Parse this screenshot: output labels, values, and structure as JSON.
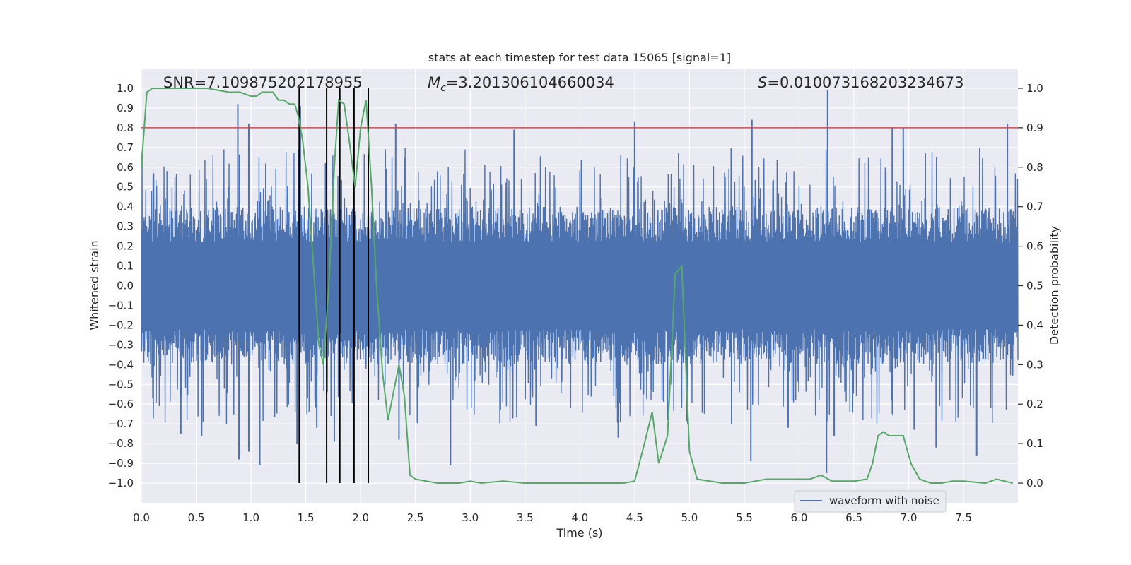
{
  "chart_data": {
    "type": "line",
    "title": "stats at each timestep for test data 15065 [signal=1]",
    "xlabel": "Time (s)",
    "ylabel_left": "Whitened strain",
    "ylabel_right": "Detection probability",
    "xlim": [
      0,
      7.996
    ],
    "ylim_left": [
      -1.1,
      1.1
    ],
    "ylim_right": [
      -0.05,
      1.05
    ],
    "x_ticks": [
      "0.0",
      "0.5",
      "1.0",
      "1.5",
      "2.0",
      "2.5",
      "3.0",
      "3.5",
      "4.0",
      "4.5",
      "5.0",
      "5.5",
      "6.0",
      "6.5",
      "7.0",
      "7.5"
    ],
    "x_tick_values": [
      0,
      0.5,
      1,
      1.5,
      2,
      2.5,
      3,
      3.5,
      4,
      4.5,
      5,
      5.5,
      6,
      6.5,
      7,
      7.5
    ],
    "y_ticks_left": [
      "1.0",
      "0.9",
      "0.8",
      "0.7",
      "0.6",
      "0.5",
      "0.4",
      "0.3",
      "0.2",
      "0.1",
      "0.0",
      "−0.1",
      "−0.2",
      "−0.3",
      "−0.4",
      "−0.5",
      "−0.6",
      "−0.7",
      "−0.8",
      "−0.9",
      "−1.0"
    ],
    "y_tick_values_left": [
      1,
      0.9,
      0.8,
      0.7,
      0.6,
      0.5,
      0.4,
      0.3,
      0.2,
      0.1,
      0,
      -0.1,
      -0.2,
      -0.3,
      -0.4,
      -0.5,
      -0.6,
      -0.7,
      -0.8,
      -0.9,
      -1
    ],
    "y_ticks_right": [
      "1.0",
      "0.9",
      "0.8",
      "0.7",
      "0.6",
      "0.5",
      "0.4",
      "0.3",
      "0.2",
      "0.1",
      "0.0"
    ],
    "y_tick_values_right": [
      1,
      0.9,
      0.8,
      0.7,
      0.6,
      0.5,
      0.4,
      0.3,
      0.2,
      0.1,
      0
    ],
    "annotations": {
      "snr": "SNR=7.109875202178955",
      "mc_symbol": "M",
      "mc_sub": "c",
      "mc_value": "=3.201306104660034",
      "s_symbol": "S",
      "s_value": "=0.010073168203234673"
    },
    "threshold_line": {
      "value_left_axis": 0.8,
      "color": "#c44e52"
    },
    "vertical_markers": [
      1.44,
      1.69,
      1.81,
      1.94,
      2.07
    ],
    "series": [
      {
        "name": "waveform with noise",
        "color": "#4c72b0",
        "description": "noisy whitened strain, dense band approx -0.4..0.4 with spikes to about ±1.0",
        "spikes": [
          [
            0.88,
            0.92
          ],
          [
            0.98,
            0.82
          ],
          [
            1.45,
            0.91
          ],
          [
            1.68,
            0.62
          ],
          [
            2.32,
            0.82
          ],
          [
            3.4,
            0.79
          ],
          [
            4.5,
            0.83
          ],
          [
            5.57,
            0.84
          ],
          [
            6.26,
            0.99
          ],
          [
            6.85,
            0.8
          ],
          [
            6.95,
            0.8
          ],
          [
            7.9,
            0.82
          ],
          [
            0.89,
            -0.88
          ],
          [
            0.98,
            -0.84
          ],
          [
            1.08,
            -0.91
          ],
          [
            1.42,
            -0.8
          ],
          [
            1.76,
            -0.79
          ],
          [
            2.35,
            -0.78
          ],
          [
            2.82,
            -0.91
          ],
          [
            4.35,
            -0.77
          ],
          [
            5.56,
            -0.89
          ],
          [
            6.25,
            -0.95
          ],
          [
            6.32,
            -0.76
          ],
          [
            7.25,
            -0.82
          ],
          [
            7.62,
            -0.86
          ],
          [
            0.36,
            -0.75
          ],
          [
            0.55,
            -0.76
          ],
          [
            1.6,
            -0.72
          ],
          [
            3.6,
            -0.71
          ],
          [
            4.8,
            -0.68
          ],
          [
            5.9,
            -0.72
          ],
          [
            7.05,
            -0.73
          ]
        ]
      },
      {
        "name": "detection probability",
        "color": "#55a868",
        "axis": "right",
        "x": [
          0,
          0.05,
          0.1,
          0.2,
          0.4,
          0.6,
          0.8,
          0.9,
          1.0,
          1.05,
          1.1,
          1.15,
          1.2,
          1.25,
          1.3,
          1.35,
          1.4,
          1.43,
          1.47,
          1.52,
          1.57,
          1.62,
          1.66,
          1.71,
          1.76,
          1.8,
          1.85,
          1.9,
          1.95,
          2.0,
          2.05,
          2.1,
          2.15,
          2.2,
          2.25,
          2.3,
          2.35,
          2.4,
          2.45,
          2.5,
          2.7,
          2.9,
          3.0,
          3.1,
          3.3,
          3.5,
          4.0,
          4.4,
          4.5,
          4.58,
          4.66,
          4.72,
          4.8,
          4.87,
          4.93,
          5.0,
          5.07,
          5.3,
          5.5,
          5.7,
          6.0,
          6.1,
          6.2,
          6.3,
          6.5,
          6.62,
          6.67,
          6.72,
          6.77,
          6.82,
          6.88,
          6.95,
          7.02,
          7.1,
          7.2,
          7.3,
          7.4,
          7.5,
          7.7,
          7.8,
          7.95
        ],
        "y": [
          0.8,
          0.99,
          1.0,
          1.0,
          1.0,
          1.0,
          0.99,
          0.99,
          0.98,
          0.98,
          0.99,
          0.99,
          0.99,
          0.97,
          0.97,
          0.96,
          0.96,
          0.93,
          0.87,
          0.75,
          0.55,
          0.35,
          0.3,
          0.5,
          0.8,
          0.97,
          0.96,
          0.86,
          0.75,
          0.9,
          0.97,
          0.75,
          0.48,
          0.28,
          0.16,
          0.23,
          0.3,
          0.22,
          0.02,
          0.01,
          0.0,
          0.0,
          0.005,
          0.0,
          0.005,
          0.0,
          0.0,
          0.0,
          0.005,
          0.09,
          0.18,
          0.05,
          0.12,
          0.53,
          0.55,
          0.08,
          0.01,
          0.0,
          0.0,
          0.01,
          0.01,
          0.01,
          0.02,
          0.005,
          0.005,
          0.01,
          0.05,
          0.12,
          0.13,
          0.12,
          0.12,
          0.12,
          0.05,
          0.01,
          0.0,
          0.0,
          0.005,
          0.005,
          0.0,
          0.01,
          0.0
        ]
      }
    ],
    "legend": {
      "placement": "lower-right",
      "entries": [
        "waveform with noise"
      ]
    },
    "grid": true
  },
  "colors": {
    "plot_bg": "#eaeaf2",
    "grid": "#ffffff",
    "waveform": "#4c72b0",
    "probability": "#55a868",
    "threshold": "#c44e52",
    "marker": "#000000"
  }
}
